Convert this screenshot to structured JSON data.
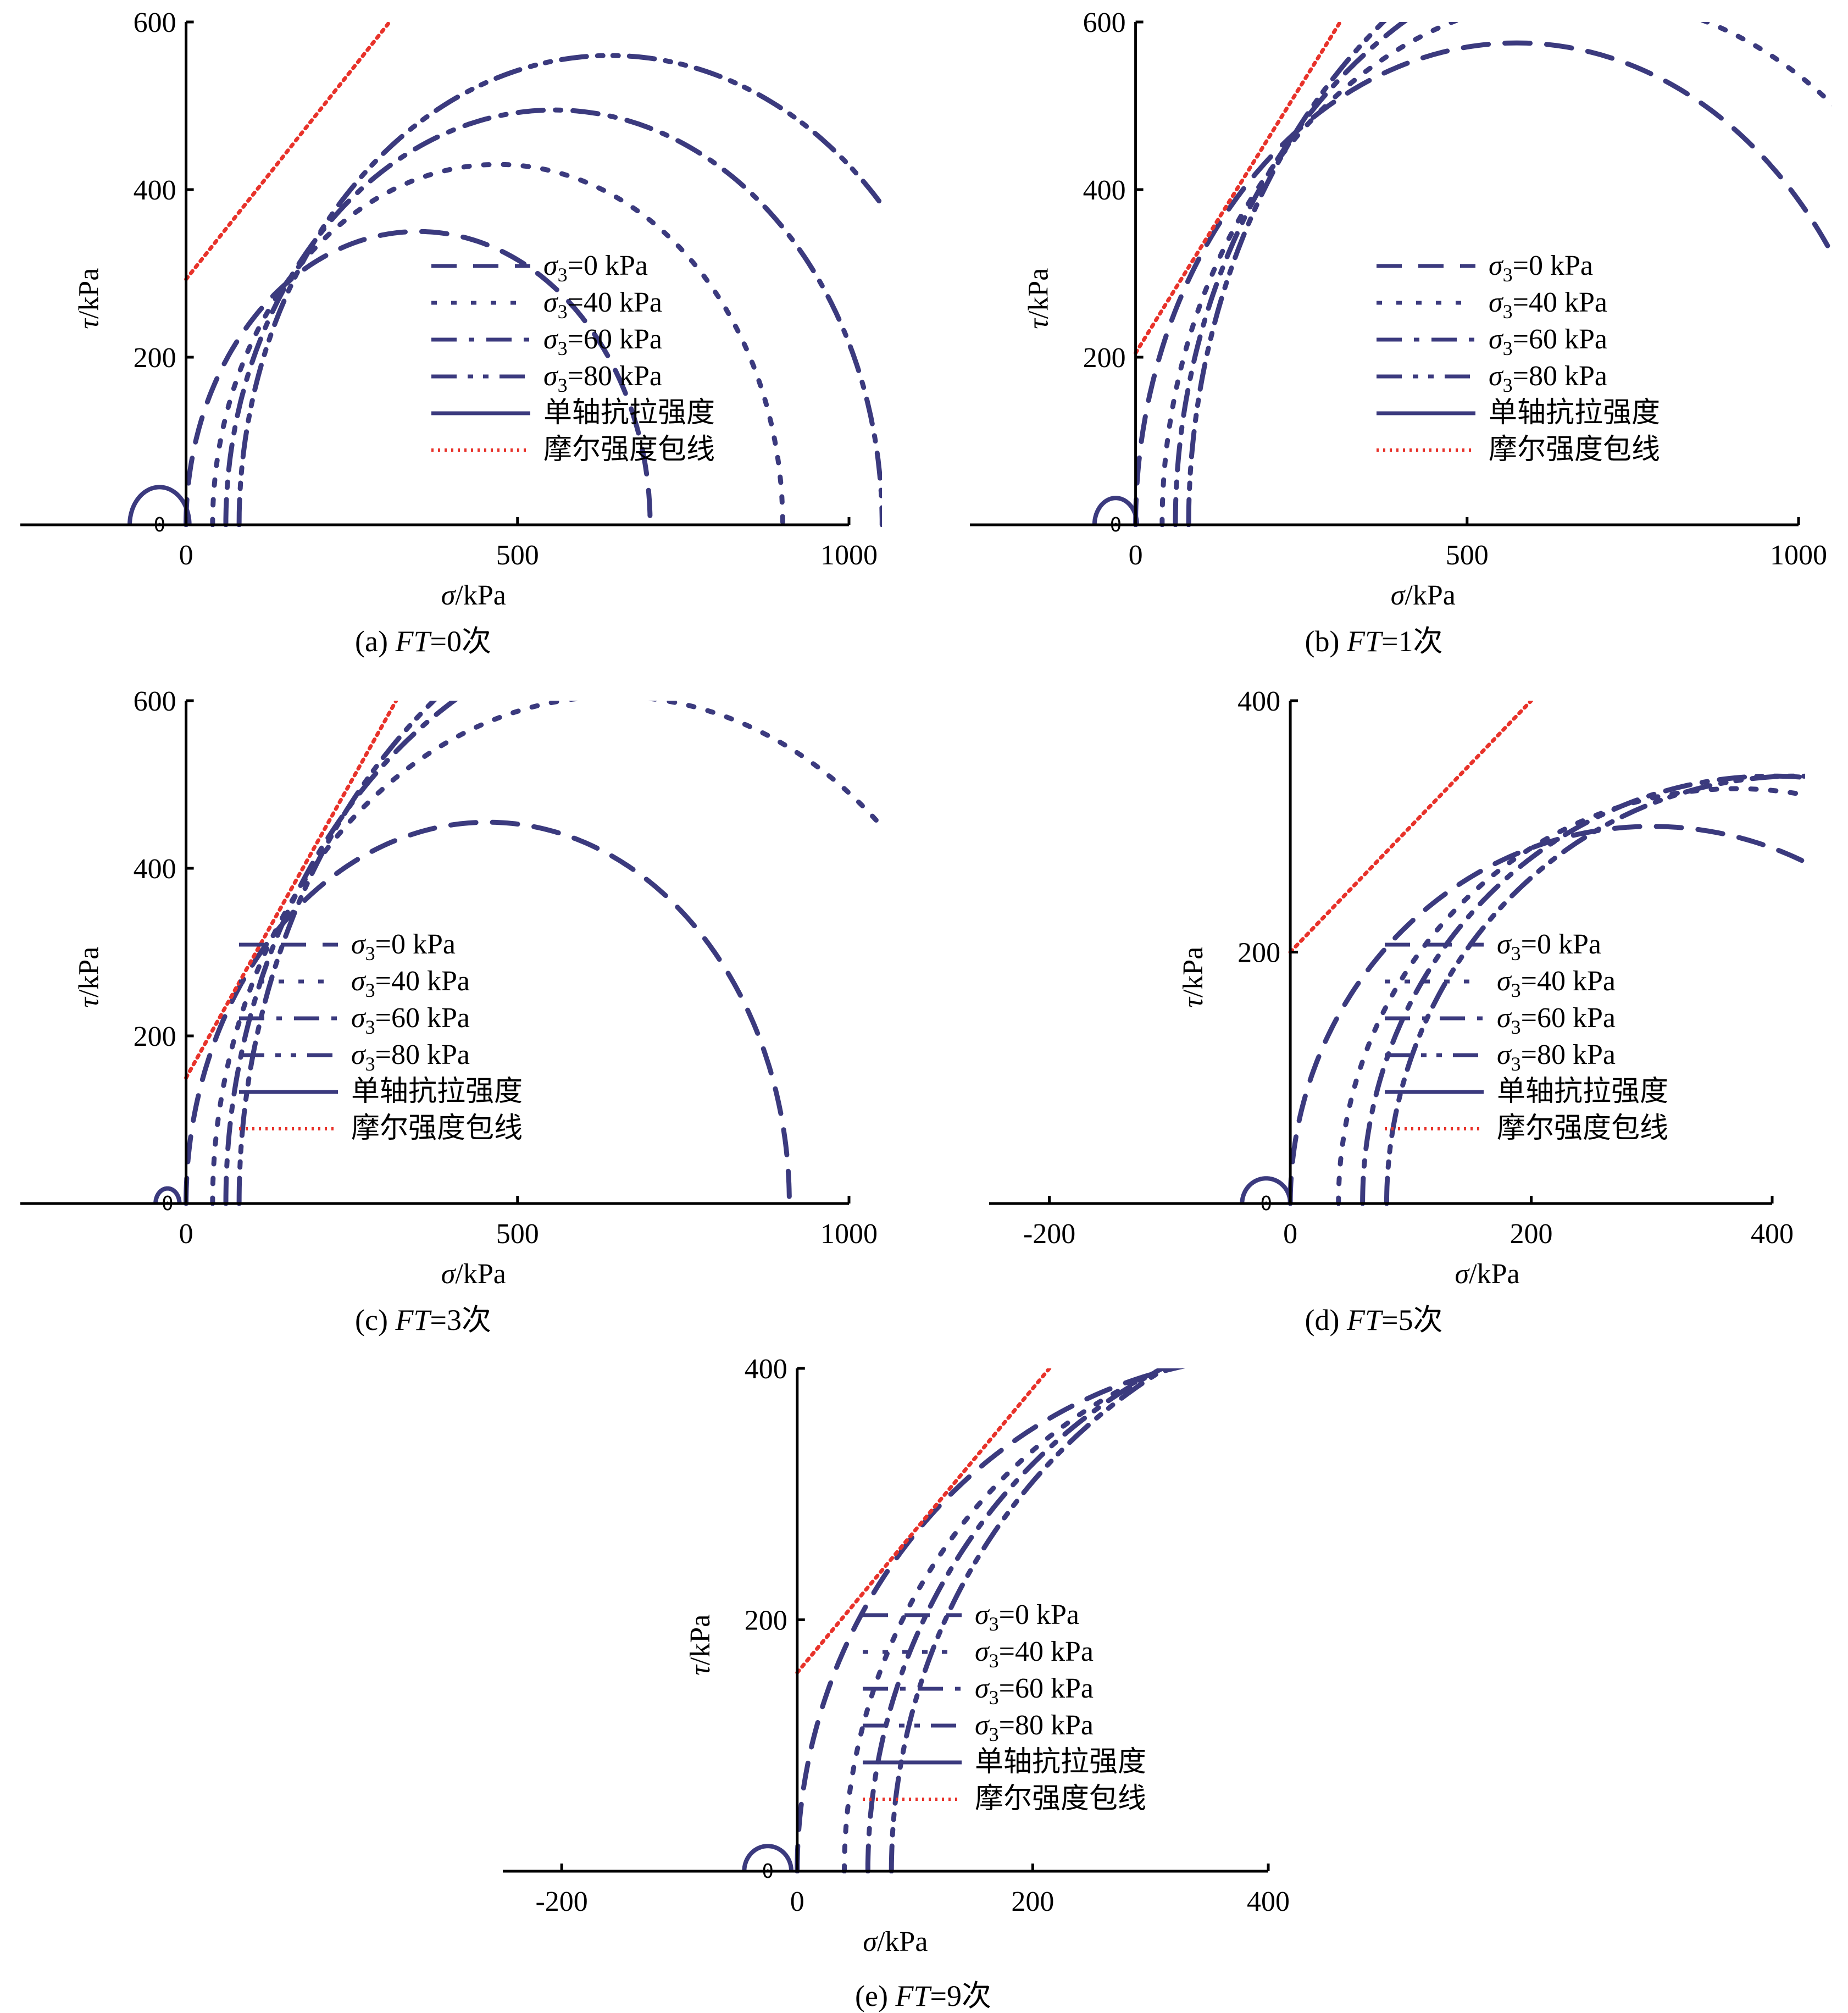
{
  "colors": {
    "curve": "#3b3a7e",
    "envelope": "#e8322a",
    "axis": "#000000"
  },
  "legend_labels": [
    "σ3=0 kPa",
    "σ3=40 kPa",
    "σ3=60 kPa",
    "σ3=80 kPa",
    "单轴抗拉强度",
    "摩尔强度包线"
  ],
  "chart_data": [
    {
      "type": "line",
      "panel": "a",
      "caption": "(a) FT=0次",
      "xlabel": "σ/kPa",
      "ylabel": "τ/kPa",
      "xlim": [
        -250,
        1000
      ],
      "ylim": [
        0,
        600
      ],
      "xticks": [
        0,
        500,
        1000
      ],
      "yticks": [
        200,
        400,
        600
      ],
      "origin_label": "0",
      "tensile_circle": {
        "center": -40,
        "radius": 45
      },
      "series": [
        {
          "name": "σ3=0 kPa",
          "sigma3": 0,
          "sigma1": 700
        },
        {
          "name": "σ3=40 kPa",
          "sigma3": 40,
          "sigma1": 900
        },
        {
          "name": "σ3=60 kPa",
          "sigma3": 60,
          "sigma1": 1050
        },
        {
          "name": "σ3=80 kPa",
          "sigma3": 80,
          "sigma1": 1200
        }
      ],
      "envelope": {
        "cohesion": 293,
        "slope": 1.0
      }
    },
    {
      "type": "line",
      "panel": "b",
      "caption": "(b) FT=1次",
      "xlabel": "σ/kPa",
      "ylabel": "τ/kPa",
      "xlim": [
        -250,
        1000
      ],
      "ylim": [
        0,
        600
      ],
      "xticks": [
        0,
        500,
        1000
      ],
      "yticks": [
        200,
        400,
        600
      ],
      "origin_label": "0",
      "tensile_circle": {
        "center": -30,
        "radius": 32
      },
      "series": [
        {
          "name": "σ3=0 kPa",
          "sigma3": 0,
          "sigma1": 1150
        },
        {
          "name": "σ3=40 kPa",
          "sigma3": 40,
          "sigma1": 1300
        },
        {
          "name": "σ3=60 kPa",
          "sigma3": 60,
          "sigma1": 1450
        },
        {
          "name": "σ3=80 kPa",
          "sigma3": 80,
          "sigma1": 1600
        }
      ],
      "envelope": {
        "cohesion": 205,
        "slope": 1.28
      }
    },
    {
      "type": "line",
      "panel": "c",
      "caption": "(c) FT=3次",
      "xlabel": "σ/kPa",
      "ylabel": "τ/kPa",
      "xlim": [
        -250,
        1000
      ],
      "ylim": [
        0,
        600
      ],
      "xticks": [
        0,
        500,
        1000
      ],
      "yticks": [
        200,
        400,
        600
      ],
      "origin_label": "0",
      "tensile_circle": {
        "center": -28,
        "radius": 18
      },
      "series": [
        {
          "name": "σ3=0 kPa",
          "sigma3": 0,
          "sigma1": 910
        },
        {
          "name": "σ3=40 kPa",
          "sigma3": 40,
          "sigma1": 1250
        },
        {
          "name": "σ3=60 kPa",
          "sigma3": 60,
          "sigma1": 1450
        },
        {
          "name": "σ3=80 kPa",
          "sigma3": 80,
          "sigma1": 1600
        }
      ],
      "envelope": {
        "cohesion": 150,
        "slope": 1.42
      }
    },
    {
      "type": "line",
      "panel": "d",
      "caption": "(d) FT=5次",
      "xlabel": "σ/kPa",
      "ylabel": "τ/kPa",
      "xlim": [
        -250,
        400
      ],
      "ylim": [
        0,
        400
      ],
      "xticks": [
        -200,
        0,
        200,
        400
      ],
      "yticks": [
        200,
        400
      ],
      "origin_label": "0",
      "tensile_circle": {
        "center": -20,
        "radius": 20
      },
      "series": [
        {
          "name": "σ3=0 kPa",
          "sigma3": 0,
          "sigma1": 600
        },
        {
          "name": "σ3=40 kPa",
          "sigma3": 40,
          "sigma1": 700
        },
        {
          "name": "σ3=60 kPa",
          "sigma3": 60,
          "sigma1": 740
        },
        {
          "name": "σ3=80 kPa",
          "sigma3": 80,
          "sigma1": 760
        }
      ],
      "envelope": {
        "cohesion": 200,
        "slope": 1.0
      }
    },
    {
      "type": "line",
      "panel": "e",
      "caption": "(e) FT=9次",
      "xlabel": "σ/kPa",
      "ylabel": "τ/kPa",
      "xlim": [
        -250,
        400
      ],
      "ylim": [
        0,
        400
      ],
      "xticks": [
        -200,
        0,
        200,
        400
      ],
      "yticks": [
        200,
        400
      ],
      "origin_label": "0",
      "tensile_circle": {
        "center": -25,
        "radius": 20
      },
      "series": [
        {
          "name": "σ3=0 kPa",
          "sigma3": 0,
          "sigma1": 820
        },
        {
          "name": "σ3=40 kPa",
          "sigma3": 40,
          "sigma1": 900
        },
        {
          "name": "σ3=60 kPa",
          "sigma3": 60,
          "sigma1": 950
        },
        {
          "name": "σ3=80 kPa",
          "sigma3": 80,
          "sigma1": 1000
        }
      ],
      "envelope": {
        "cohesion": 158,
        "slope": 1.13
      }
    }
  ]
}
